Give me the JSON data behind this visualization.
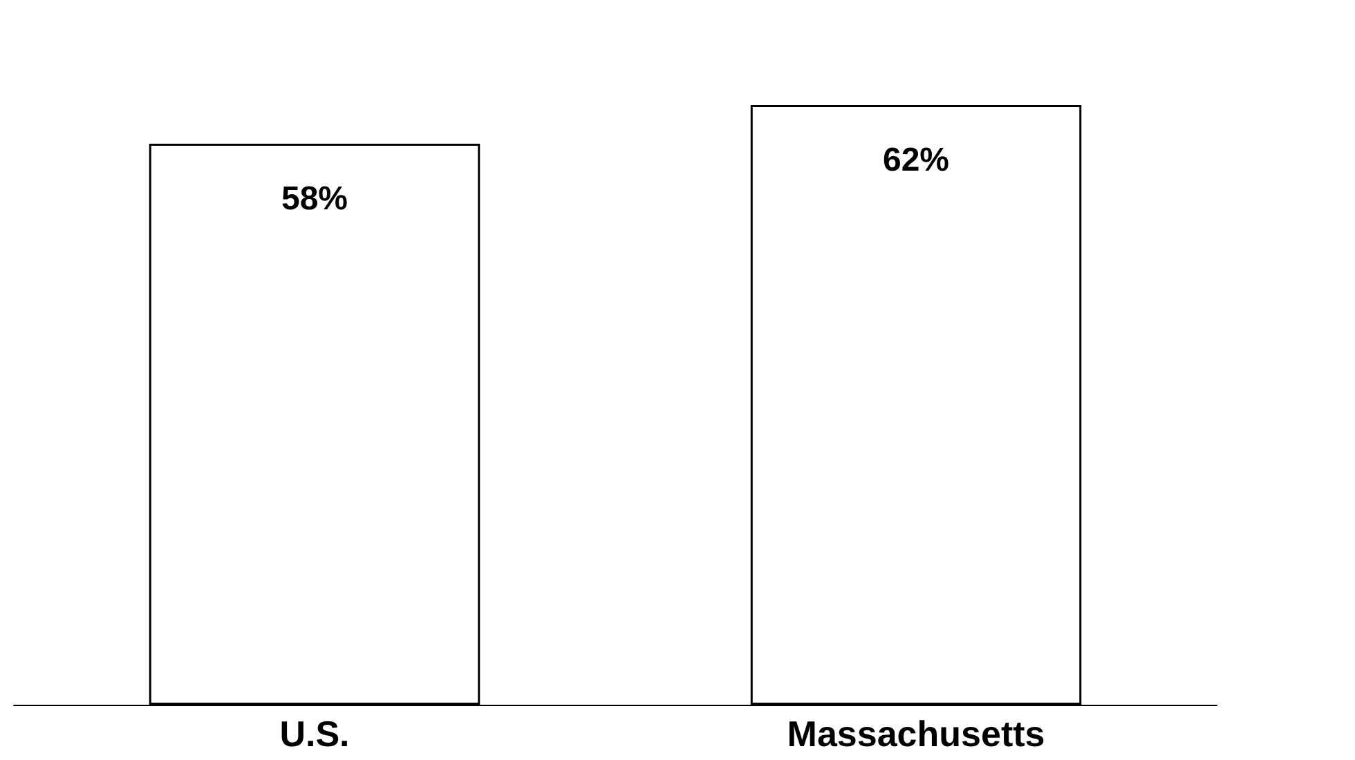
{
  "chart_data": {
    "type": "bar",
    "categories": [
      "U.S.",
      "Massachusetts"
    ],
    "values": [
      58,
      62
    ],
    "color": "#ffffff",
    "value_labels": [
      "58%",
      "62%"
    ]
  }
}
